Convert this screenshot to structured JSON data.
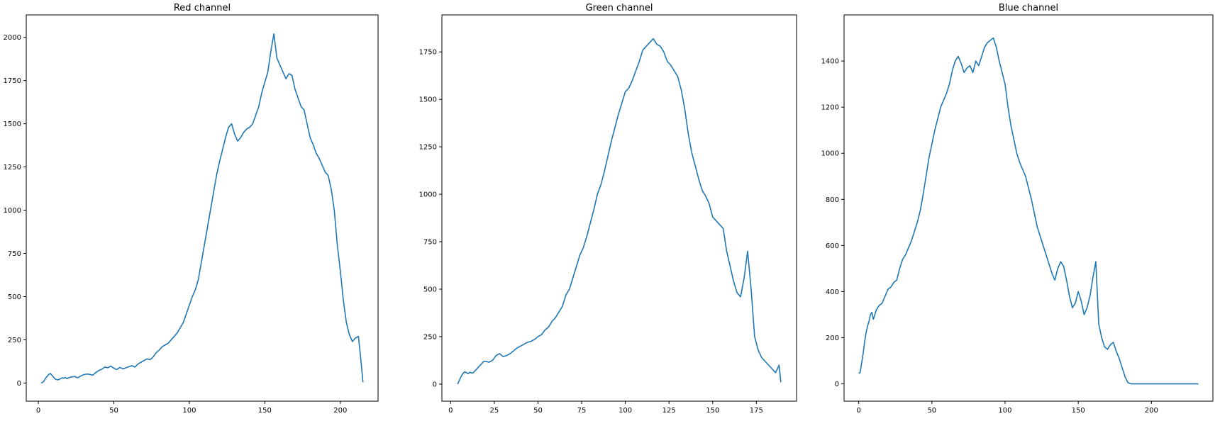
{
  "chart_data": [
    {
      "type": "line",
      "title": "Red channel",
      "xlabel": "",
      "ylabel": "",
      "xlim": [
        -8,
        225
      ],
      "ylim": [
        -105,
        2130
      ],
      "xticks": [
        0,
        50,
        100,
        150,
        200
      ],
      "yticks": [
        0,
        250,
        500,
        750,
        1000,
        1250,
        1500,
        1750,
        2000
      ],
      "grid": false,
      "color": "#1f77b4",
      "series": [
        {
          "x": [
            2,
            3,
            4,
            5,
            6,
            7,
            8,
            9,
            10,
            11,
            12,
            13,
            14,
            15,
            16,
            17,
            18,
            19,
            20,
            22,
            24,
            26,
            28,
            30,
            32,
            34,
            36,
            38,
            40,
            42,
            44,
            46,
            48,
            50,
            52,
            54,
            56,
            58,
            60,
            62,
            64,
            66,
            68,
            70,
            72,
            74,
            76,
            78,
            80,
            82,
            84,
            86,
            88,
            90,
            92,
            94,
            96,
            98,
            100,
            102,
            104,
            106,
            108,
            110,
            112,
            114,
            116,
            118,
            120,
            122,
            124,
            126,
            128,
            130,
            132,
            134,
            136,
            138,
            140,
            142,
            144,
            146,
            148,
            150,
            152,
            154,
            156,
            158,
            160,
            162,
            164,
            166,
            168,
            170,
            172,
            174,
            176,
            178,
            180,
            182,
            184,
            186,
            188,
            190,
            192,
            194,
            196,
            198,
            200,
            202,
            204,
            206,
            208,
            210,
            212,
            214,
            215
          ],
          "y": [
            0,
            5,
            15,
            30,
            40,
            50,
            55,
            45,
            35,
            25,
            20,
            18,
            22,
            26,
            30,
            28,
            32,
            25,
            30,
            35,
            38,
            30,
            40,
            48,
            52,
            50,
            45,
            60,
            72,
            80,
            92,
            88,
            98,
            85,
            78,
            90,
            82,
            88,
            95,
            100,
            92,
            110,
            120,
            130,
            140,
            135,
            150,
            175,
            190,
            210,
            220,
            230,
            250,
            270,
            290,
            320,
            350,
            400,
            450,
            500,
            540,
            600,
            700,
            800,
            900,
            1000,
            1100,
            1200,
            1280,
            1350,
            1420,
            1480,
            1500,
            1440,
            1400,
            1420,
            1450,
            1470,
            1480,
            1500,
            1550,
            1600,
            1680,
            1740,
            1800,
            1920,
            2020,
            1880,
            1840,
            1800,
            1760,
            1790,
            1780,
            1700,
            1650,
            1600,
            1580,
            1500,
            1420,
            1380,
            1330,
            1300,
            1260,
            1220,
            1200,
            1120,
            1000,
            800,
            650,
            480,
            350,
            280,
            240,
            260,
            270,
            100,
            5
          ]
        }
      ]
    },
    {
      "type": "line",
      "title": "Green channel",
      "xlabel": "",
      "ylabel": "",
      "xlim": [
        -5,
        198
      ],
      "ylim": [
        -90,
        1945
      ],
      "xticks": [
        0,
        25,
        50,
        75,
        100,
        125,
        150,
        175
      ],
      "yticks": [
        0,
        250,
        500,
        750,
        1000,
        1250,
        1500,
        1750
      ],
      "grid": false,
      "color": "#1f77b4",
      "series": [
        {
          "x": [
            4,
            5,
            6,
            7,
            8,
            9,
            10,
            11,
            12,
            13,
            14,
            15,
            16,
            17,
            18,
            19,
            20,
            22,
            24,
            26,
            28,
            30,
            32,
            34,
            36,
            38,
            40,
            42,
            44,
            46,
            48,
            50,
            52,
            54,
            56,
            58,
            60,
            62,
            64,
            66,
            68,
            70,
            72,
            74,
            76,
            78,
            80,
            82,
            84,
            86,
            88,
            90,
            92,
            94,
            96,
            98,
            100,
            102,
            104,
            106,
            108,
            110,
            112,
            114,
            116,
            118,
            120,
            122,
            124,
            126,
            128,
            130,
            132,
            134,
            136,
            138,
            140,
            142,
            144,
            146,
            148,
            150,
            152,
            154,
            156,
            158,
            160,
            162,
            164,
            166,
            168,
            170,
            172,
            174,
            176,
            178,
            180,
            182,
            184,
            186,
            188,
            189
          ],
          "y": [
            0,
            20,
            40,
            55,
            65,
            60,
            55,
            62,
            58,
            60,
            70,
            80,
            90,
            100,
            110,
            120,
            120,
            115,
            125,
            150,
            160,
            145,
            150,
            160,
            175,
            190,
            200,
            210,
            220,
            225,
            235,
            250,
            260,
            285,
            300,
            330,
            350,
            380,
            410,
            470,
            500,
            560,
            620,
            680,
            720,
            780,
            850,
            920,
            1000,
            1050,
            1120,
            1200,
            1280,
            1350,
            1420,
            1480,
            1540,
            1560,
            1600,
            1650,
            1700,
            1760,
            1780,
            1800,
            1820,
            1790,
            1780,
            1750,
            1700,
            1680,
            1650,
            1620,
            1550,
            1450,
            1320,
            1220,
            1150,
            1080,
            1020,
            990,
            950,
            880,
            860,
            840,
            820,
            700,
            620,
            540,
            480,
            460,
            560,
            700,
            500,
            250,
            180,
            140,
            120,
            100,
            80,
            60,
            100,
            10
          ]
        }
      ]
    },
    {
      "type": "line",
      "title": "Blue channel",
      "xlabel": "",
      "ylabel": "",
      "xlim": [
        -10,
        242
      ],
      "ylim": [
        -75,
        1600
      ],
      "xticks": [
        0,
        50,
        100,
        150,
        200
      ],
      "yticks": [
        0,
        200,
        400,
        600,
        800,
        1000,
        1200,
        1400
      ],
      "grid": false,
      "color": "#1f77b4",
      "series": [
        {
          "x": [
            0,
            1,
            2,
            3,
            4,
            5,
            6,
            7,
            8,
            9,
            10,
            12,
            14,
            16,
            18,
            20,
            22,
            24,
            26,
            28,
            30,
            32,
            34,
            36,
            38,
            40,
            42,
            44,
            46,
            48,
            50,
            52,
            54,
            56,
            58,
            60,
            62,
            64,
            66,
            68,
            70,
            72,
            74,
            76,
            78,
            80,
            82,
            84,
            86,
            88,
            90,
            92,
            94,
            96,
            98,
            100,
            102,
            104,
            106,
            108,
            110,
            112,
            114,
            116,
            118,
            120,
            122,
            124,
            126,
            128,
            130,
            132,
            134,
            136,
            138,
            140,
            142,
            144,
            146,
            148,
            150,
            152,
            154,
            156,
            158,
            160,
            162,
            164,
            166,
            168,
            170,
            172,
            174,
            176,
            178,
            180,
            182,
            184,
            186,
            188,
            190,
            200,
            210,
            220,
            232
          ],
          "y": [
            45,
            50,
            90,
            130,
            180,
            220,
            250,
            270,
            300,
            310,
            280,
            320,
            340,
            350,
            380,
            410,
            420,
            440,
            450,
            500,
            540,
            560,
            590,
            620,
            660,
            700,
            750,
            820,
            900,
            980,
            1040,
            1100,
            1150,
            1200,
            1230,
            1260,
            1300,
            1360,
            1400,
            1420,
            1390,
            1350,
            1370,
            1380,
            1350,
            1400,
            1380,
            1420,
            1460,
            1480,
            1490,
            1500,
            1460,
            1400,
            1350,
            1300,
            1200,
            1120,
            1060,
            1000,
            960,
            930,
            900,
            850,
            800,
            740,
            680,
            640,
            600,
            560,
            520,
            480,
            450,
            500,
            530,
            510,
            450,
            380,
            330,
            350,
            400,
            360,
            300,
            330,
            380,
            460,
            530,
            260,
            200,
            160,
            150,
            170,
            180,
            140,
            110,
            70,
            30,
            5,
            0,
            0,
            0,
            0,
            0,
            0,
            0
          ]
        }
      ]
    }
  ]
}
